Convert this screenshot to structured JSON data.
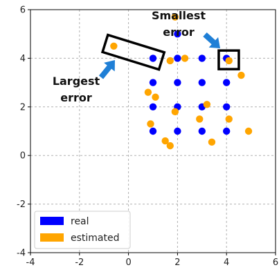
{
  "chart_data": {
    "type": "scatter",
    "xlim": [
      -4,
      6
    ],
    "ylim": [
      -4,
      6
    ],
    "xticks": [
      "-4",
      "-2",
      "0",
      "2",
      "4",
      "6"
    ],
    "yticks": [
      "-4",
      "-2",
      "0",
      "2",
      "4",
      "6"
    ],
    "grid": true,
    "legend_position": "bottom-left",
    "series": [
      {
        "name": "real",
        "color": "#0000ff",
        "points": [
          [
            1,
            4
          ],
          [
            2,
            4
          ],
          [
            3,
            4
          ],
          [
            4,
            4
          ],
          [
            2,
            5
          ],
          [
            1,
            3
          ],
          [
            2,
            3
          ],
          [
            3,
            3
          ],
          [
            4,
            3
          ],
          [
            1,
            2
          ],
          [
            2,
            2
          ],
          [
            3,
            2
          ],
          [
            4,
            2
          ],
          [
            1,
            1
          ],
          [
            2,
            1
          ],
          [
            3,
            1
          ],
          [
            4,
            1
          ]
        ]
      },
      {
        "name": "estimated",
        "color": "#ffa500",
        "points": [
          [
            -0.6,
            4.5
          ],
          [
            1.7,
            3.9
          ],
          [
            2.3,
            4.0
          ],
          [
            1.9,
            5.7
          ],
          [
            4.1,
            3.9
          ],
          [
            4.6,
            3.3
          ],
          [
            0.8,
            2.6
          ],
          [
            1.1,
            2.4
          ],
          [
            1.9,
            1.8
          ],
          [
            3.2,
            2.1
          ],
          [
            2.9,
            1.5
          ],
          [
            4.1,
            1.5
          ],
          [
            0.9,
            1.3
          ],
          [
            4.9,
            1.0
          ],
          [
            1.5,
            0.6
          ],
          [
            1.7,
            0.4
          ],
          [
            3.4,
            0.55
          ]
        ]
      }
    ],
    "annotations": [
      {
        "id": "largest",
        "text_lines": [
          "Largest",
          "error"
        ]
      },
      {
        "id": "smallest",
        "text_lines": [
          "Smallest",
          "error"
        ]
      }
    ]
  }
}
